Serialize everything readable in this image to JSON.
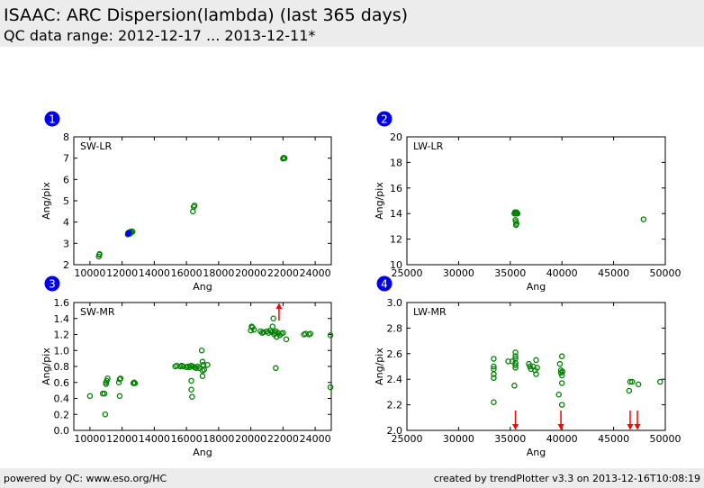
{
  "header": {
    "title": "ISAAC: ARC Dispersion(lambda) (last 365 days)",
    "subtitle": "QC data range: 2012-12-17 ... 2013-12-11*"
  },
  "footer": {
    "left": "powered by QC: www.eso.org/HC",
    "right": "created by trendPlotter v3.3 on 2013-12-16T10:08:19"
  },
  "colors": {
    "points": "#008000",
    "highlight": "#0000ff",
    "outlier": "#ff0000",
    "badge": "#0000ee",
    "band": "#ececec"
  },
  "chart_data": [
    {
      "type": "scatter",
      "badge": "1",
      "label": "SW-LR",
      "xlabel": "Ang",
      "ylabel": "Ang/pix",
      "xlim": [
        9000,
        25000
      ],
      "ylim": [
        2,
        8
      ],
      "xticks": [
        10000,
        12000,
        14000,
        16000,
        18000,
        20000,
        22000,
        24000
      ],
      "yticks": [
        2,
        3,
        4,
        5,
        6,
        7,
        8
      ],
      "points": [
        {
          "x": 10550,
          "y": 2.38
        },
        {
          "x": 10580,
          "y": 2.47
        },
        {
          "x": 10600,
          "y": 2.5
        },
        {
          "x": 12350,
          "y": 3.42
        },
        {
          "x": 12380,
          "y": 3.5
        },
        {
          "x": 12420,
          "y": 3.46
        },
        {
          "x": 12450,
          "y": 3.52
        },
        {
          "x": 12480,
          "y": 3.45
        },
        {
          "x": 12520,
          "y": 3.55
        },
        {
          "x": 12560,
          "y": 3.5
        },
        {
          "x": 12600,
          "y": 3.57
        },
        {
          "x": 12650,
          "y": 3.55
        },
        {
          "x": 16400,
          "y": 4.5
        },
        {
          "x": 16450,
          "y": 4.72
        },
        {
          "x": 16500,
          "y": 4.78
        },
        {
          "x": 22000,
          "y": 6.98
        },
        {
          "x": 22050,
          "y": 7.02
        },
        {
          "x": 22100,
          "y": 7.0
        }
      ],
      "highlight_points": [
        {
          "x": 12380,
          "y": 3.45
        },
        {
          "x": 12420,
          "y": 3.5
        }
      ],
      "outliers_up": [],
      "outliers_down": []
    },
    {
      "type": "scatter",
      "badge": "2",
      "label": "LW-LR",
      "xlabel": "Ang",
      "ylabel": "Ang/pix",
      "xlim": [
        25000,
        50000
      ],
      "ylim": [
        10,
        20
      ],
      "xticks": [
        25000,
        30000,
        35000,
        40000,
        45000,
        50000
      ],
      "yticks": [
        10,
        12,
        14,
        16,
        18,
        20
      ],
      "points": [
        {
          "x": 35400,
          "y": 14.0
        },
        {
          "x": 35450,
          "y": 14.1
        },
        {
          "x": 35500,
          "y": 14.05
        },
        {
          "x": 35550,
          "y": 14.0
        },
        {
          "x": 35600,
          "y": 14.1
        },
        {
          "x": 35650,
          "y": 14.05
        },
        {
          "x": 35700,
          "y": 14.0
        },
        {
          "x": 35500,
          "y": 13.5
        },
        {
          "x": 35550,
          "y": 13.35
        },
        {
          "x": 35600,
          "y": 13.2
        },
        {
          "x": 35550,
          "y": 13.1
        },
        {
          "x": 47900,
          "y": 13.55
        }
      ],
      "highlight_points": [],
      "outliers_up": [],
      "outliers_down": []
    },
    {
      "type": "scatter",
      "badge": "3",
      "label": "SW-MR",
      "xlabel": "Ang",
      "ylabel": "Ang/pix",
      "xlim": [
        9000,
        25000
      ],
      "ylim": [
        0.0,
        1.6
      ],
      "xticks": [
        10000,
        12000,
        14000,
        16000,
        18000,
        20000,
        22000,
        24000
      ],
      "yticks": [
        0.0,
        0.2,
        0.4,
        0.6,
        0.8,
        1.0,
        1.2,
        1.4,
        1.6
      ],
      "points": [
        {
          "x": 10000,
          "y": 0.43
        },
        {
          "x": 10800,
          "y": 0.46
        },
        {
          "x": 10900,
          "y": 0.46
        },
        {
          "x": 10950,
          "y": 0.2
        },
        {
          "x": 11000,
          "y": 0.58
        },
        {
          "x": 11050,
          "y": 0.62
        },
        {
          "x": 11100,
          "y": 0.65
        },
        {
          "x": 11000,
          "y": 0.6
        },
        {
          "x": 11800,
          "y": 0.6
        },
        {
          "x": 11850,
          "y": 0.64
        },
        {
          "x": 11900,
          "y": 0.65
        },
        {
          "x": 11850,
          "y": 0.43
        },
        {
          "x": 12700,
          "y": 0.59
        },
        {
          "x": 12750,
          "y": 0.6
        },
        {
          "x": 12800,
          "y": 0.59
        },
        {
          "x": 15300,
          "y": 0.8
        },
        {
          "x": 15400,
          "y": 0.81
        },
        {
          "x": 15600,
          "y": 0.8
        },
        {
          "x": 15700,
          "y": 0.81
        },
        {
          "x": 15800,
          "y": 0.8
        },
        {
          "x": 16000,
          "y": 0.79
        },
        {
          "x": 16100,
          "y": 0.8
        },
        {
          "x": 16200,
          "y": 0.79
        },
        {
          "x": 16300,
          "y": 0.81
        },
        {
          "x": 16400,
          "y": 0.8
        },
        {
          "x": 16500,
          "y": 0.79
        },
        {
          "x": 16600,
          "y": 0.78
        },
        {
          "x": 16700,
          "y": 0.8
        },
        {
          "x": 16800,
          "y": 0.78
        },
        {
          "x": 16300,
          "y": 0.62
        },
        {
          "x": 16300,
          "y": 0.51
        },
        {
          "x": 16350,
          "y": 0.42
        },
        {
          "x": 16950,
          "y": 1.0
        },
        {
          "x": 17000,
          "y": 0.86
        },
        {
          "x": 17050,
          "y": 0.82
        },
        {
          "x": 17000,
          "y": 0.75
        },
        {
          "x": 17100,
          "y": 0.76
        },
        {
          "x": 17000,
          "y": 0.68
        },
        {
          "x": 17300,
          "y": 0.82
        },
        {
          "x": 20000,
          "y": 1.25
        },
        {
          "x": 20050,
          "y": 1.3
        },
        {
          "x": 20100,
          "y": 1.29
        },
        {
          "x": 20200,
          "y": 1.26
        },
        {
          "x": 20600,
          "y": 1.24
        },
        {
          "x": 20700,
          "y": 1.22
        },
        {
          "x": 20800,
          "y": 1.23
        },
        {
          "x": 21000,
          "y": 1.24
        },
        {
          "x": 21100,
          "y": 1.22
        },
        {
          "x": 21200,
          "y": 1.25
        },
        {
          "x": 21300,
          "y": 1.23
        },
        {
          "x": 21350,
          "y": 1.3
        },
        {
          "x": 21400,
          "y": 1.4
        },
        {
          "x": 21450,
          "y": 1.2
        },
        {
          "x": 21500,
          "y": 1.22
        },
        {
          "x": 21550,
          "y": 1.24
        },
        {
          "x": 21600,
          "y": 1.17
        },
        {
          "x": 21700,
          "y": 1.22
        },
        {
          "x": 21800,
          "y": 1.19
        },
        {
          "x": 21900,
          "y": 1.21
        },
        {
          "x": 22000,
          "y": 1.22
        },
        {
          "x": 22200,
          "y": 1.14
        },
        {
          "x": 21550,
          "y": 0.78
        },
        {
          "x": 23300,
          "y": 1.2
        },
        {
          "x": 23400,
          "y": 1.21
        },
        {
          "x": 23600,
          "y": 1.2
        },
        {
          "x": 23700,
          "y": 1.21
        },
        {
          "x": 24950,
          "y": 1.19
        },
        {
          "x": 24950,
          "y": 0.54
        }
      ],
      "highlight_points": [],
      "outliers_up": [
        {
          "x": 21750
        }
      ],
      "outliers_down": []
    },
    {
      "type": "scatter",
      "badge": "4",
      "label": "LW-MR",
      "xlabel": "Ang",
      "ylabel": "Ang/pix",
      "xlim": [
        25000,
        50000
      ],
      "ylim": [
        2.0,
        3.0
      ],
      "xticks": [
        25000,
        30000,
        35000,
        40000,
        45000,
        50000
      ],
      "yticks": [
        2.0,
        2.2,
        2.4,
        2.6,
        2.8,
        3.0
      ],
      "points": [
        {
          "x": 33400,
          "y": 2.56
        },
        {
          "x": 33400,
          "y": 2.5
        },
        {
          "x": 33400,
          "y": 2.48
        },
        {
          "x": 33400,
          "y": 2.44
        },
        {
          "x": 33400,
          "y": 2.41
        },
        {
          "x": 33400,
          "y": 2.22
        },
        {
          "x": 34800,
          "y": 2.54
        },
        {
          "x": 35200,
          "y": 2.54
        },
        {
          "x": 35500,
          "y": 2.61
        },
        {
          "x": 35500,
          "y": 2.58
        },
        {
          "x": 35500,
          "y": 2.56
        },
        {
          "x": 35500,
          "y": 2.53
        },
        {
          "x": 35500,
          "y": 2.51
        },
        {
          "x": 35500,
          "y": 2.49
        },
        {
          "x": 35400,
          "y": 2.35
        },
        {
          "x": 36800,
          "y": 2.52
        },
        {
          "x": 36900,
          "y": 2.5
        },
        {
          "x": 37000,
          "y": 2.48
        },
        {
          "x": 37200,
          "y": 2.5
        },
        {
          "x": 37400,
          "y": 2.47
        },
        {
          "x": 37500,
          "y": 2.44
        },
        {
          "x": 37500,
          "y": 2.55
        },
        {
          "x": 37600,
          "y": 2.49
        },
        {
          "x": 39700,
          "y": 2.28
        },
        {
          "x": 39800,
          "y": 2.52
        },
        {
          "x": 39900,
          "y": 2.47
        },
        {
          "x": 39900,
          "y": 2.45
        },
        {
          "x": 40000,
          "y": 2.43
        },
        {
          "x": 40000,
          "y": 2.58
        },
        {
          "x": 40000,
          "y": 2.37
        },
        {
          "x": 40000,
          "y": 2.2
        },
        {
          "x": 40050,
          "y": 2.46
        },
        {
          "x": 46500,
          "y": 2.31
        },
        {
          "x": 46600,
          "y": 2.38
        },
        {
          "x": 46800,
          "y": 2.38
        },
        {
          "x": 47400,
          "y": 2.36
        },
        {
          "x": 49500,
          "y": 2.38
        }
      ],
      "highlight_points": [],
      "outliers_up": [],
      "outliers_down": [
        {
          "x": 35500
        },
        {
          "x": 39900
        },
        {
          "x": 46600
        },
        {
          "x": 47300
        }
      ]
    }
  ]
}
